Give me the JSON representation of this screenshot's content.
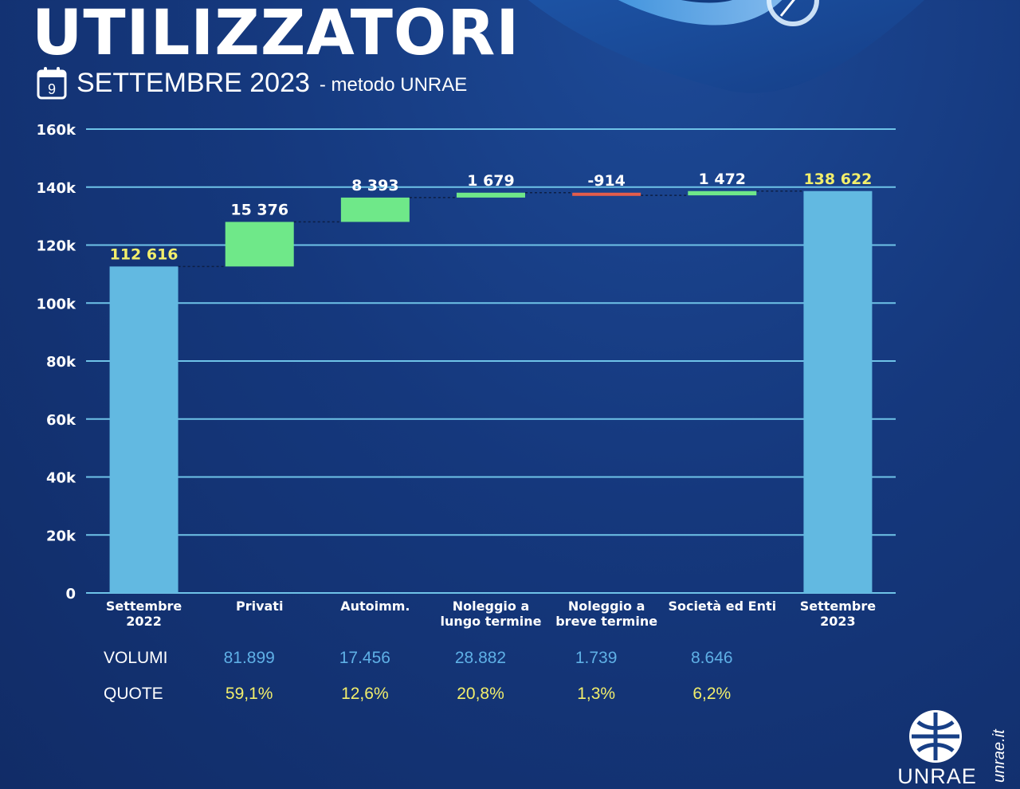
{
  "header": {
    "title": "UTILIZZATORI",
    "calendar_day": "9",
    "date": "SETTEMBRE 2023",
    "method": "- metodo UNRAE"
  },
  "chart_data": {
    "type": "waterfall",
    "title": "UTILIZZATORI",
    "subtitle": "SETTEMBRE 2023 - metodo UNRAE",
    "categories": [
      "Settembre 2022",
      "Privati",
      "Autoimm.",
      "Noleggio a lungo termine",
      "Noleggio a breve termine",
      "Società ed Enti",
      "Settembre 2023"
    ],
    "category_lines": [
      [
        "Settembre",
        "2022"
      ],
      [
        "Privati"
      ],
      [
        "Autoimm."
      ],
      [
        "Noleggio a",
        "lungo termine"
      ],
      [
        "Noleggio a",
        "breve termine"
      ],
      [
        "Società ed Enti"
      ],
      [
        "Settembre",
        "2023"
      ]
    ],
    "steps": [
      {
        "label": "Settembre 2022",
        "kind": "total",
        "value": 112616,
        "display": "112 616"
      },
      {
        "label": "Privati",
        "kind": "delta",
        "value": 15376,
        "display": "15 376"
      },
      {
        "label": "Autoimm.",
        "kind": "delta",
        "value": 8393,
        "display": "8 393"
      },
      {
        "label": "Noleggio a lungo termine",
        "kind": "delta",
        "value": 1679,
        "display": "1 679"
      },
      {
        "label": "Noleggio a breve termine",
        "kind": "delta",
        "value": -914,
        "display": "-914"
      },
      {
        "label": "Società ed Enti",
        "kind": "delta",
        "value": 1472,
        "display": "1 472"
      },
      {
        "label": "Settembre 2023",
        "kind": "total",
        "value": 138622,
        "display": "138 622"
      }
    ],
    "y_ticks": [
      0,
      20000,
      40000,
      60000,
      80000,
      100000,
      120000,
      140000,
      160000
    ],
    "y_tick_labels": [
      "0",
      "20k",
      "40k",
      "60k",
      "80k",
      "100k",
      "120k",
      "140k",
      "160k"
    ],
    "ylim": [
      0,
      160000
    ],
    "grid": true,
    "colors": {
      "total": "#62b9e1",
      "increase": "#6fe889",
      "decrease": "#e35d4b",
      "gridline": "#6fc3e8",
      "total_label": "#f2ee6b",
      "delta_label": "#ffffff",
      "connector": "#0d1f45"
    }
  },
  "stats": {
    "volumes_label": "VOLUMI",
    "shares_label": "QUOTE",
    "volumes": [
      "81.899",
      "17.456",
      "28.882",
      "1.739",
      "8.646"
    ],
    "shares": [
      "59,1%",
      "12,6%",
      "20,8%",
      "1,3%",
      "6,2%"
    ],
    "volume_color": "#5fb0e6",
    "share_color": "#f2ee6b"
  },
  "brand": {
    "logo_text": "UNRAE",
    "site": "unrae.it"
  }
}
